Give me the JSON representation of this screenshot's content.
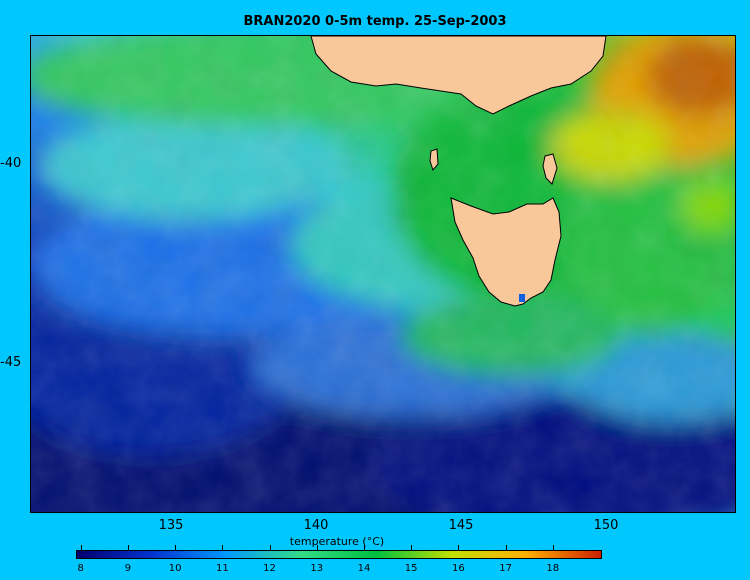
{
  "title": "BRAN2020 0-5m temp. 25-Sep-2003",
  "map": {
    "longitude_ticks": [
      "135",
      "140",
      "145",
      "150"
    ],
    "latitude_ticks": [
      "-40",
      "-45"
    ],
    "land_color": "#f8c89a",
    "background_color": "#00c8ff"
  },
  "colorbar": {
    "label": "temperature (°C)",
    "tick_labels": [
      "8",
      "9",
      "10",
      "11",
      "12",
      "13",
      "14",
      "15",
      "16",
      "17",
      "18"
    ],
    "range": [
      7.9,
      19.0
    ],
    "colors": [
      "#000070",
      "#0033d0",
      "#0099ff",
      "#33dd88",
      "#00c040",
      "#c0e000",
      "#ffb000",
      "#cc2000"
    ]
  }
}
